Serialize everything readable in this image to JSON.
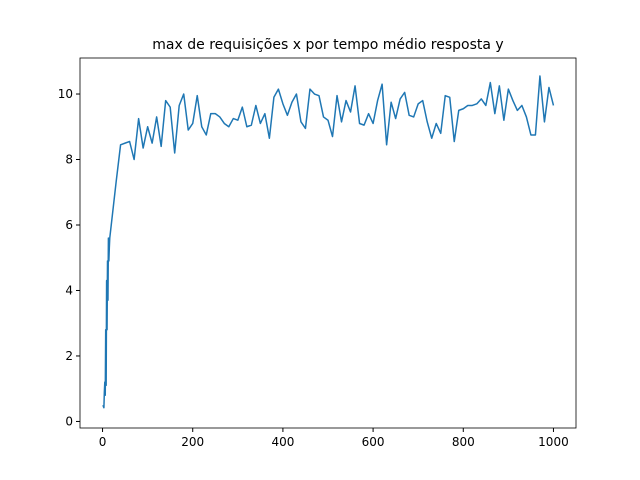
{
  "chart_data": {
    "type": "line",
    "title": "max de requisições x por tempo médio resposta y",
    "x": [
      1,
      2,
      3,
      4,
      5,
      6,
      7,
      8,
      9,
      10,
      11,
      12,
      13,
      14,
      15,
      16,
      30,
      40,
      50,
      60,
      70,
      80,
      90,
      100,
      110,
      120,
      130,
      140,
      150,
      160,
      170,
      180,
      190,
      200,
      210,
      220,
      230,
      240,
      250,
      260,
      270,
      280,
      290,
      300,
      310,
      320,
      330,
      340,
      350,
      360,
      370,
      380,
      390,
      400,
      410,
      420,
      430,
      440,
      450,
      460,
      470,
      480,
      490,
      500,
      510,
      520,
      530,
      540,
      550,
      560,
      570,
      580,
      590,
      600,
      610,
      620,
      630,
      640,
      650,
      660,
      670,
      680,
      690,
      700,
      710,
      720,
      730,
      740,
      750,
      760,
      770,
      780,
      790,
      800,
      810,
      820,
      830,
      840,
      850,
      860,
      870,
      880,
      890,
      900,
      910,
      920,
      930,
      940,
      950,
      960,
      970,
      980,
      990,
      1000
    ],
    "series": [
      {
        "color": "#1f77b4",
        "values": [
          0.5,
          0.45,
          0.42,
          0.9,
          1.2,
          0.8,
          2.8,
          1.1,
          4.3,
          2.8,
          4.9,
          3.7,
          5.6,
          4.9,
          5.3,
          5.6,
          7.3,
          8.45,
          8.5,
          8.55,
          8.0,
          9.25,
          8.35,
          9.0,
          8.5,
          9.3,
          8.4,
          9.8,
          9.6,
          8.2,
          9.65,
          10.0,
          8.9,
          9.1,
          9.95,
          9.0,
          8.75,
          9.4,
          9.4,
          9.3,
          9.1,
          9.0,
          9.25,
          9.2,
          9.6,
          9.0,
          9.05,
          9.65,
          9.1,
          9.4,
          8.65,
          9.9,
          10.15,
          9.7,
          9.35,
          9.75,
          10.0,
          9.15,
          8.95,
          10.15,
          10.0,
          9.95,
          9.3,
          9.2,
          8.7,
          9.95,
          9.15,
          9.8,
          9.45,
          10.25,
          9.1,
          9.05,
          9.4,
          9.1,
          9.8,
          10.3,
          8.45,
          9.75,
          9.25,
          9.85,
          10.05,
          9.35,
          9.3,
          9.7,
          9.8,
          9.15,
          8.65,
          9.1,
          8.8,
          9.95,
          9.9,
          8.55,
          9.5,
          9.55,
          9.65,
          9.65,
          9.7,
          9.85,
          9.65,
          10.35,
          9.4,
          10.25,
          9.2,
          10.15,
          9.8,
          9.5,
          9.65,
          9.3,
          8.75,
          8.75,
          10.55,
          9.15,
          10.2,
          9.65
        ]
      }
    ],
    "xlim": [
      -50,
      1050
    ],
    "ylim": [
      -0.2,
      11.1
    ],
    "xticks": [
      0,
      200,
      400,
      600,
      800,
      1000
    ],
    "yticks": [
      0,
      2,
      4,
      6,
      8,
      10
    ]
  }
}
